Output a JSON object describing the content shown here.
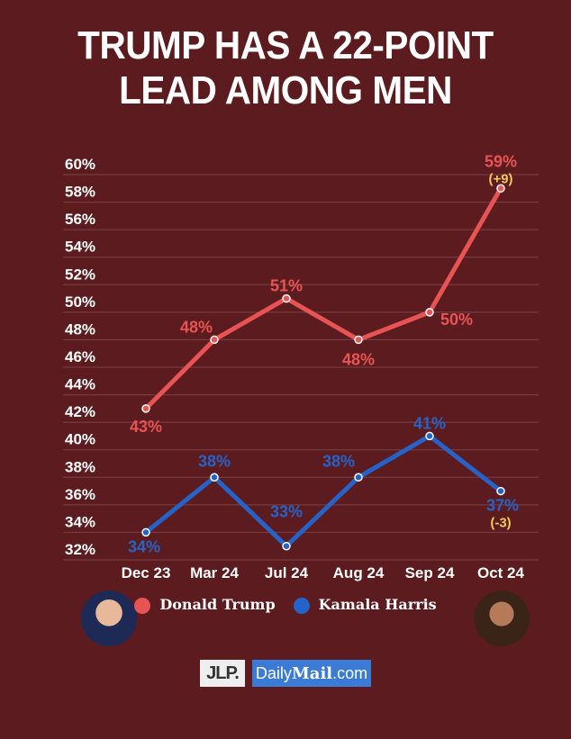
{
  "title_lines": [
    "TRUMP HAS A 22-POINT",
    "LEAD AMONG MEN"
  ],
  "colors": {
    "background": "#5c1c1f",
    "trump": "#e85454",
    "harris": "#2563c8",
    "change": "#f0c75e",
    "grid": "#7a4246"
  },
  "chart_data": {
    "type": "line",
    "categories": [
      "Dec 23",
      "Mar 24",
      "Jul 24",
      "Aug 24",
      "Sep 24",
      "Oct 24"
    ],
    "ylim": [
      32,
      60
    ],
    "yticks": [
      "32%",
      "34%",
      "36%",
      "38%",
      "40%",
      "42%",
      "44%",
      "46%",
      "48%",
      "50%",
      "52%",
      "54%",
      "56%",
      "58%",
      "60%"
    ],
    "grid": true,
    "legend_position": "bottom",
    "series": [
      {
        "name": "Donald Trump",
        "values": [
          43,
          48,
          51,
          48,
          50,
          59
        ],
        "labels": [
          "43%",
          "48%",
          "51%",
          "48%",
          "50%",
          "59%"
        ],
        "change_label": "(+9)"
      },
      {
        "name": "Kamala Harris",
        "values": [
          34,
          38,
          33,
          38,
          41,
          37
        ],
        "labels": [
          "34%",
          "38%",
          "33%",
          "38%",
          "41%",
          "37%"
        ],
        "change_label": "(-3)"
      }
    ]
  },
  "legend": {
    "trump": "Donald Trump",
    "harris": "Kamala Harris"
  },
  "logos": {
    "jlp": "JLP.",
    "dailymail_prefix": "Daily",
    "dailymail_main": "Mail",
    "dailymail_suffix": ".com"
  }
}
